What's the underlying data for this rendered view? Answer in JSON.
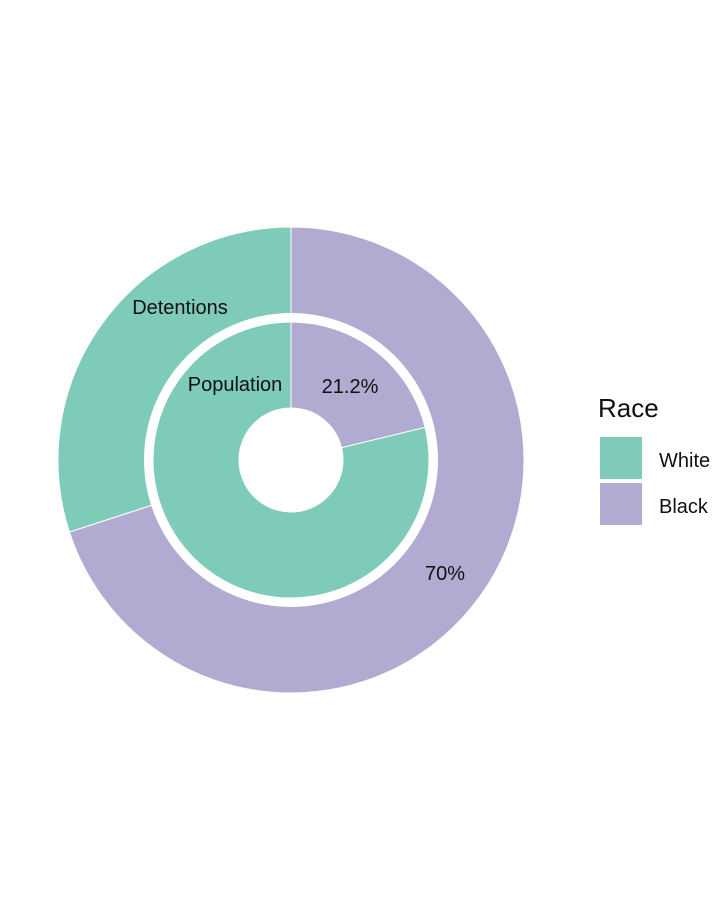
{
  "chart_data": {
    "type": "pie",
    "variant": "nested-donut",
    "rings": [
      {
        "name": "Detentions",
        "ring": "outer",
        "slices": [
          {
            "category": "Black",
            "value": 70,
            "label": "70%"
          },
          {
            "category": "White",
            "value": 30,
            "label": ""
          }
        ]
      },
      {
        "name": "Population",
        "ring": "inner",
        "slices": [
          {
            "category": "Black",
            "value": 21.2,
            "label": "21.2%"
          },
          {
            "category": "White",
            "value": 78.8,
            "label": ""
          }
        ]
      }
    ],
    "legend": {
      "title": "Race",
      "position": "right",
      "entries": [
        {
          "name": "White",
          "color": "#7fcbba"
        },
        {
          "name": "Black",
          "color": "#b1aad1"
        }
      ]
    },
    "colors": {
      "White": "#7fcbba",
      "Black": "#b1aad1"
    }
  }
}
